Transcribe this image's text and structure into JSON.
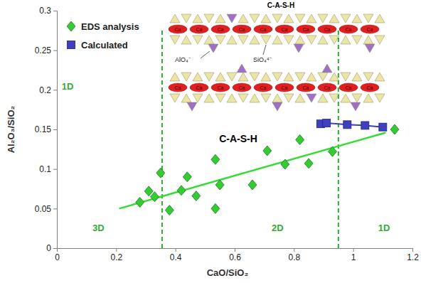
{
  "chart_data": {
    "type": "scatter",
    "x_label": "CaO/SiO₂",
    "y_label": "Al₂O₃/SiO₂",
    "xlim": [
      0,
      1.2
    ],
    "xticks": [
      0,
      0.2,
      0.4,
      0.6,
      0.8,
      1,
      1.2
    ],
    "ylim": [
      0,
      0.3
    ],
    "yticks": [
      0,
      0.05,
      0.1,
      0.15,
      0.2,
      0.25,
      0.3
    ],
    "grid": false,
    "legend": "top-left",
    "series": [
      {
        "name": "EDS analysis",
        "color": "#33cc33",
        "marker": "diamond",
        "line_style": "none",
        "x": [
          0.28,
          0.31,
          0.33,
          0.35,
          0.38,
          0.42,
          0.44,
          0.47,
          0.535,
          0.535,
          0.55,
          0.66,
          0.71,
          0.77,
          0.82,
          0.85,
          0.93,
          1.14
        ],
        "values": [
          0.058,
          0.072,
          0.065,
          0.095,
          0.048,
          0.073,
          0.09,
          0.066,
          0.112,
          0.05,
          0.08,
          0.08,
          0.123,
          0.106,
          0.137,
          0.107,
          0.122,
          0.15
        ]
      },
      {
        "name": "Calculated",
        "color": "#3f3fbf",
        "marker": "square",
        "line_style": "solid",
        "x": [
          0.89,
          0.91,
          0.98,
          1.04,
          1.1
        ],
        "values": [
          0.157,
          0.158,
          0.156,
          0.155,
          0.153
        ]
      }
    ],
    "trend_lines": [
      {
        "x": [
          0.21,
          1.11
        ],
        "values": [
          0.05,
          0.146
        ],
        "color": "#33dd33"
      }
    ],
    "vlines": [
      {
        "x": 0.355,
        "y": [
          0,
          0.275
        ],
        "color": "#2eaa2e",
        "line_style": "dashed"
      },
      {
        "x": 0.95,
        "y": [
          0,
          0.275
        ],
        "color": "#2eaa2e",
        "line_style": "dashed"
      }
    ],
    "annotations": [
      {
        "text": "1D",
        "x": 0.036,
        "y": 0.2,
        "color": "#33aa33"
      },
      {
        "text": "3D",
        "x": 0.14,
        "y": 0.022,
        "color": "#33aa33"
      },
      {
        "text": "2D",
        "x": 0.745,
        "y": 0.022,
        "color": "#33aa33"
      },
      {
        "text": "1D",
        "x": 1.104,
        "y": 0.022,
        "color": "#33aa33"
      },
      {
        "text": "C-A-S-H",
        "x": 0.612,
        "y": 0.134,
        "color": "#000000"
      }
    ],
    "inset": {
      "title": "C-A-S-H",
      "ion": "Ca",
      "al_label": "AlO₄⁻",
      "si_label": "SiO₄⁴⁻"
    }
  }
}
